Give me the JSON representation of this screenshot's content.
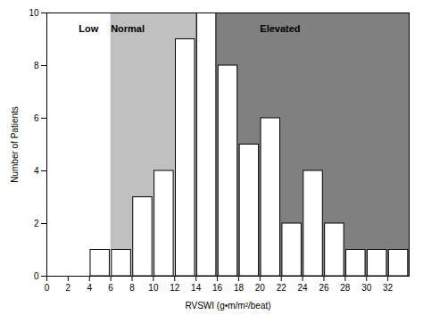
{
  "chart_data": {
    "type": "histogram",
    "bins": [
      0,
      2,
      4,
      6,
      8,
      10,
      12,
      14,
      16,
      18,
      20,
      22,
      24,
      26,
      28,
      30,
      32,
      34
    ],
    "values": [
      0,
      0,
      1,
      1,
      3,
      4,
      9,
      10,
      8,
      5,
      6,
      2,
      4,
      2,
      1,
      1,
      1
    ],
    "color": "#ffffff",
    "xlabel": "RVSWI (g•m/m²/beat)",
    "ylabel": "Number of Patients",
    "xlim": [
      0,
      34
    ],
    "ylim": [
      0,
      10
    ],
    "xticks": [
      0,
      2,
      4,
      6,
      8,
      10,
      12,
      14,
      16,
      18,
      20,
      22,
      24,
      26,
      28,
      30,
      32
    ],
    "yticks": [
      0,
      2,
      4,
      6,
      8,
      10
    ],
    "grid": false,
    "regions": [
      {
        "x": [
          0,
          6
        ],
        "color": "#ffffff"
      },
      {
        "x": [
          6,
          14
        ],
        "color": "#c0c0c0"
      },
      {
        "x": [
          14,
          34
        ],
        "color": "#808080"
      }
    ],
    "annotations": [
      {
        "text": "Low",
        "x": 3,
        "y": 9.4
      },
      {
        "text": "Normal",
        "x": 6,
        "y": 9.4
      },
      {
        "text": "Elevated",
        "x": 20,
        "y": 9.4
      }
    ]
  }
}
